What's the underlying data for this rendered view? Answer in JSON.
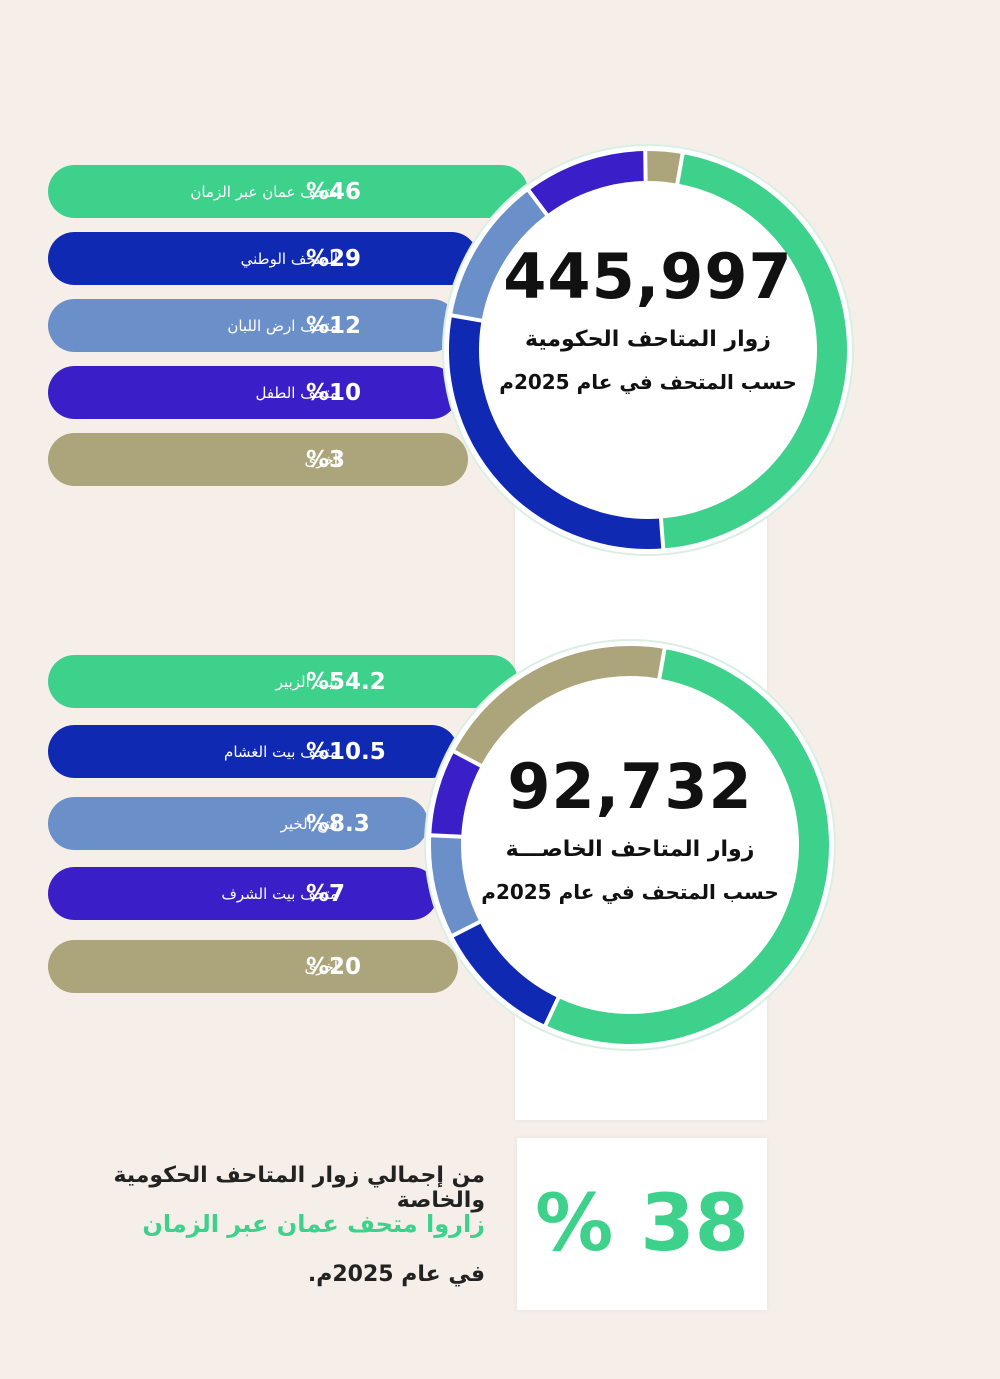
{
  "government": {
    "total": "445,997",
    "title": "زوار المتاحف الحكومية",
    "subtitle": "حسب المتحف في عام 2025م"
  },
  "private": {
    "total": "92,732",
    "title": "زوار المتاحف الخاصـــة",
    "subtitle": "حسب المتحف في عام 2025م"
  },
  "summary": {
    "percent": "% 38",
    "line1": "من إجمالي زوار المتاحف الحكومية والخاصة",
    "line2": "زاروا متحف عمان عبر الزمان",
    "line3": "في عام 2025م."
  },
  "colors": {
    "green": "#3ed18c",
    "navy": "#1029b3",
    "steel": "#6b8fc9",
    "violet": "#3a1ec8",
    "olive": "#aca47a",
    "accent_text": "#3ed18c"
  },
  "chart_data": [
    {
      "type": "pie",
      "categories": [
        "متحف عمان عبر الزمان",
        "المتحف الوطني",
        "متحف ارض اللبان",
        "متحف الطفل",
        "أخرى"
      ],
      "values": [
        46,
        29,
        12,
        10,
        3
      ],
      "labels": [
        "%46",
        "%29",
        "%12",
        "%10",
        "%3"
      ],
      "colors": [
        "#3ed18c",
        "#1029b3",
        "#6b8fc9",
        "#3a1ec8",
        "#aca47a"
      ]
    },
    {
      "type": "pie",
      "categories": [
        "بيت الزبير",
        "متحف بيت الغشام",
        "فتح الخير",
        "متحف بيت الشرف",
        "أخرى"
      ],
      "values": [
        54.2,
        10.5,
        8.3,
        7,
        20
      ],
      "labels": [
        "%54.2",
        "%10.5",
        "%8.3",
        "%7",
        "%20"
      ],
      "colors": [
        "#3ed18c",
        "#1029b3",
        "#6b8fc9",
        "#3a1ec8",
        "#aca47a"
      ]
    }
  ]
}
